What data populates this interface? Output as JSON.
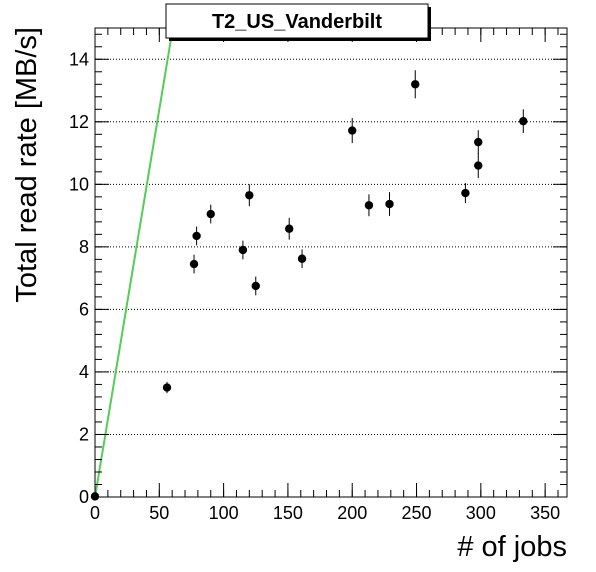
{
  "chart_data": {
    "type": "scatter",
    "title": "T2_US_Vanderbilt",
    "xlabel": "# of jobs",
    "ylabel": "Total read rate [MB/s]",
    "xlim": [
      0,
      367
    ],
    "ylim": [
      0,
      15
    ],
    "xticks": [
      0,
      50,
      100,
      150,
      200,
      250,
      300,
      350
    ],
    "yticks": [
      0,
      2,
      4,
      6,
      8,
      10,
      12,
      14
    ],
    "grid": "horizontal dotted",
    "legend": "none",
    "points": [
      {
        "x": 0,
        "y": 0.02,
        "err": 0.05
      },
      {
        "x": 56,
        "y": 3.5,
        "err": 0.18
      },
      {
        "x": 77,
        "y": 7.45,
        "err": 0.3
      },
      {
        "x": 79,
        "y": 8.35,
        "err": 0.3
      },
      {
        "x": 90,
        "y": 9.05,
        "err": 0.3
      },
      {
        "x": 115,
        "y": 7.9,
        "err": 0.3
      },
      {
        "x": 120,
        "y": 9.65,
        "err": 0.35
      },
      {
        "x": 125,
        "y": 6.75,
        "err": 0.3
      },
      {
        "x": 151,
        "y": 8.58,
        "err": 0.35
      },
      {
        "x": 161,
        "y": 7.62,
        "err": 0.3
      },
      {
        "x": 200,
        "y": 11.72,
        "err": 0.4
      },
      {
        "x": 213,
        "y": 9.33,
        "err": 0.35
      },
      {
        "x": 229,
        "y": 9.37,
        "err": 0.38
      },
      {
        "x": 249,
        "y": 13.2,
        "err": 0.45
      },
      {
        "x": 288,
        "y": 9.72,
        "err": 0.32
      },
      {
        "x": 298,
        "y": 11.35,
        "err": 0.38
      },
      {
        "x": 298,
        "y": 10.6,
        "err": 0.4
      },
      {
        "x": 333,
        "y": 12.02,
        "err": 0.38
      }
    ],
    "reference_line": {
      "x": [
        0,
        60.5
      ],
      "y": [
        0,
        15
      ],
      "color": "#55cc55"
    },
    "marker_color": "#000000",
    "frame_color": "#000000",
    "grid_color": "#000000"
  }
}
